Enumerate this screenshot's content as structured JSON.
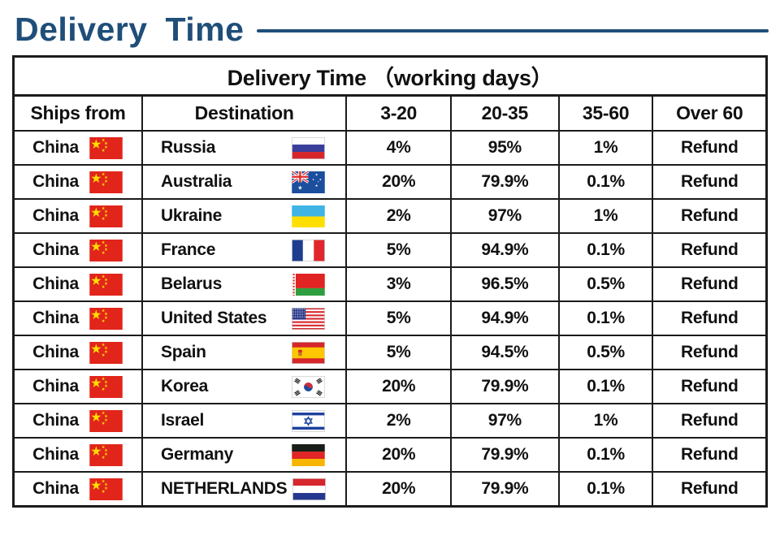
{
  "page_title": "Delivery Time",
  "accent_color": "#1f4e79",
  "table": {
    "caption": "Delivery Time （working days）",
    "columns": [
      "Ships from",
      "Destination",
      "3-20",
      "20-35",
      "35-60",
      "Over 60"
    ],
    "rows": [
      {
        "ships_from": "China",
        "ships_from_flag": "china",
        "destination": "Russia",
        "destination_flag": "russia",
        "pct_3_20": "4%",
        "pct_20_35": "95%",
        "pct_35_60": "1%",
        "over_60": "Refund"
      },
      {
        "ships_from": "China",
        "ships_from_flag": "china",
        "destination": "Australia",
        "destination_flag": "australia",
        "pct_3_20": "20%",
        "pct_20_35": "79.9%",
        "pct_35_60": "0.1%",
        "over_60": "Refund"
      },
      {
        "ships_from": "China",
        "ships_from_flag": "china",
        "destination": "Ukraine",
        "destination_flag": "ukraine",
        "pct_3_20": "2%",
        "pct_20_35": "97%",
        "pct_35_60": "1%",
        "over_60": "Refund"
      },
      {
        "ships_from": "China",
        "ships_from_flag": "china",
        "destination": "France",
        "destination_flag": "france",
        "pct_3_20": "5%",
        "pct_20_35": "94.9%",
        "pct_35_60": "0.1%",
        "over_60": "Refund"
      },
      {
        "ships_from": "China",
        "ships_from_flag": "china",
        "destination": "Belarus",
        "destination_flag": "belarus",
        "pct_3_20": "3%",
        "pct_20_35": "96.5%",
        "pct_35_60": "0.5%",
        "over_60": "Refund"
      },
      {
        "ships_from": "China",
        "ships_from_flag": "china",
        "destination": "United States",
        "destination_flag": "united-states",
        "pct_3_20": "5%",
        "pct_20_35": "94.9%",
        "pct_35_60": "0.1%",
        "over_60": "Refund"
      },
      {
        "ships_from": "China",
        "ships_from_flag": "china",
        "destination": "Spain",
        "destination_flag": "spain",
        "pct_3_20": "5%",
        "pct_20_35": "94.5%",
        "pct_35_60": "0.5%",
        "over_60": "Refund"
      },
      {
        "ships_from": "China",
        "ships_from_flag": "china",
        "destination": "Korea",
        "destination_flag": "korea",
        "pct_3_20": "20%",
        "pct_20_35": "79.9%",
        "pct_35_60": "0.1%",
        "over_60": "Refund"
      },
      {
        "ships_from": "China",
        "ships_from_flag": "china",
        "destination": "Israel",
        "destination_flag": "israel",
        "pct_3_20": "2%",
        "pct_20_35": "97%",
        "pct_35_60": "1%",
        "over_60": "Refund"
      },
      {
        "ships_from": "China",
        "ships_from_flag": "china",
        "destination": "Germany",
        "destination_flag": "germany",
        "pct_3_20": "20%",
        "pct_20_35": "79.9%",
        "pct_35_60": "0.1%",
        "over_60": "Refund"
      },
      {
        "ships_from": "China",
        "ships_from_flag": "china",
        "destination": "NETHERLANDS",
        "destination_flag": "netherlands",
        "pct_3_20": "20%",
        "pct_20_35": "79.9%",
        "pct_35_60": "0.1%",
        "over_60": "Refund"
      }
    ]
  }
}
